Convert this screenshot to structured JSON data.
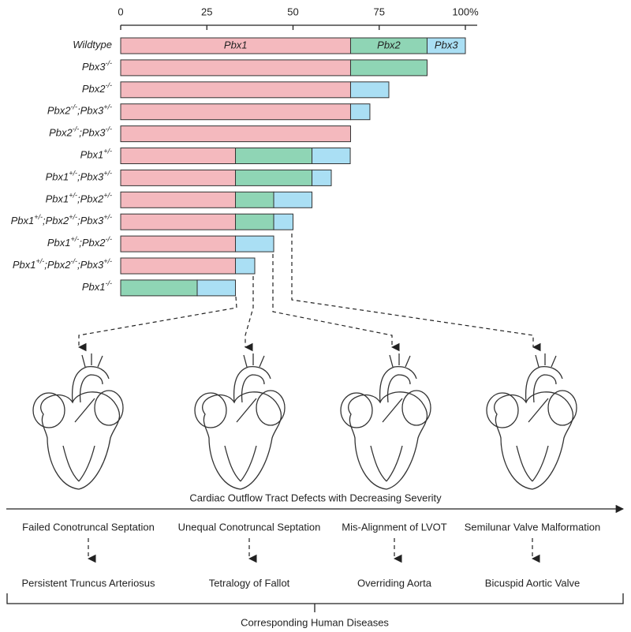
{
  "chart_data": {
    "type": "stacked-barh",
    "categories": [
      "Wildtype",
      "Pbx3-/-",
      "Pbx2-/-",
      "Pbx2-/-;Pbx3+/-",
      "Pbx2-/-;Pbx3-/-",
      "Pbx1+/-",
      "Pbx1+/-;Pbx3+/-",
      "Pbx1+/-;Pbx2+/-",
      "Pbx1+/-;Pbx2+/-;Pbx3+/-",
      "Pbx1+/-;Pbx2-/-",
      "Pbx1+/-;Pbx2-/-;Pbx3+/-",
      "Pbx1-/-"
    ],
    "series": [
      {
        "name": "Pbx1",
        "color": "#f4b9be",
        "values": [
          66.7,
          66.7,
          66.7,
          66.7,
          66.7,
          33.3,
          33.3,
          33.3,
          33.3,
          33.3,
          33.3,
          0
        ]
      },
      {
        "name": "Pbx2",
        "color": "#8fd5b5",
        "values": [
          22.2,
          22.2,
          0,
          0,
          0,
          22.2,
          22.2,
          11.1,
          11.1,
          0,
          0,
          22.2
        ]
      },
      {
        "name": "Pbx3",
        "color": "#aadff4",
        "values": [
          11.1,
          0,
          11.1,
          5.6,
          0,
          11.1,
          5.6,
          11.1,
          5.6,
          11.1,
          5.6,
          11.1
        ]
      }
    ],
    "xlim": [
      0,
      100
    ],
    "xticks": [
      0,
      25,
      50,
      75,
      {
        "value": 100,
        "label": "100%"
      }
    ]
  },
  "diagram": {
    "axis_title": "Cardiac Outflow Tract Defects with Decreasing Severity",
    "defects": [
      "Failed Conotruncal Septation",
      "Unequal Conotruncal Septation",
      "Mis-Alignment of LVOT",
      "Semilunar Valve Malformation"
    ],
    "diseases": [
      "Persistent Truncus Arteriosus",
      "Tetralogy of Fallot",
      "Overriding Aorta",
      "Bicuspid Aortic Valve"
    ],
    "footer": "Corresponding Human Diseases"
  }
}
